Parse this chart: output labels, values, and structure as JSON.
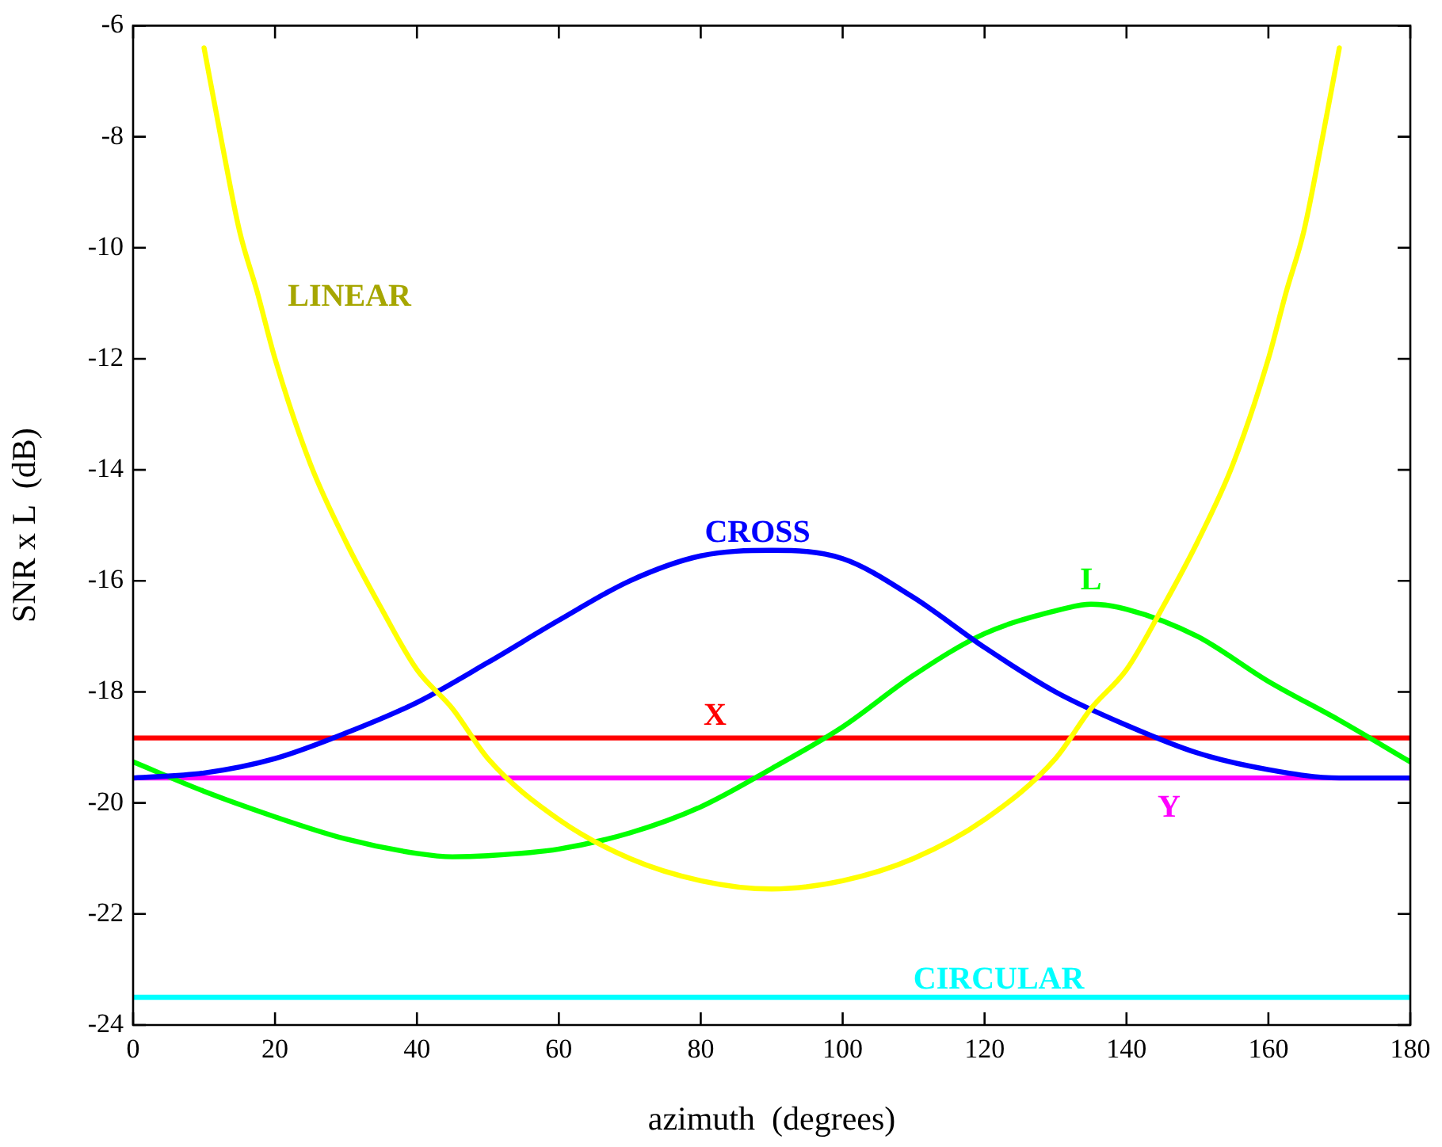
{
  "chart_data": {
    "type": "line",
    "xlabel": "azimuth  (degrees)",
    "ylabel": "SNR x L  (dB)",
    "xlim": [
      0,
      180
    ],
    "xticks": [
      0,
      20,
      40,
      60,
      80,
      100,
      120,
      140,
      160,
      180
    ],
    "ylim": [
      -24,
      -6
    ],
    "yticks": [
      -24,
      -22,
      -20,
      -18,
      -16,
      -14,
      -12,
      -10,
      -8,
      -6
    ],
    "grid": false,
    "legend": false,
    "marker": "none",
    "line_style": "solid",
    "series": [
      {
        "name": "LINEAR",
        "color": "#ffff00",
        "x": [
          10,
          12.5,
          15,
          17.5,
          20,
          25,
          30,
          35,
          40,
          45,
          50,
          60,
          70,
          80,
          90,
          100,
          110,
          120,
          130,
          135,
          140,
          145,
          150,
          155,
          160,
          162.5,
          165,
          167.5,
          170
        ],
        "values": [
          -6.4,
          -8.1,
          -9.7,
          -10.8,
          -12.0,
          -13.9,
          -15.3,
          -16.5,
          -17.6,
          -18.3,
          -19.2,
          -20.3,
          -21.0,
          -21.4,
          -21.55,
          -21.4,
          -21.0,
          -20.3,
          -19.2,
          -18.3,
          -17.6,
          -16.5,
          -15.3,
          -13.9,
          -12.0,
          -10.8,
          -9.7,
          -8.1,
          -6.4
        ]
      },
      {
        "name": "CROSS",
        "color": "#0000ff",
        "x": [
          0,
          10,
          20,
          30,
          40,
          50,
          60,
          70,
          80,
          90,
          100,
          110,
          120,
          130,
          140,
          150,
          160,
          170,
          180
        ],
        "values": [
          -19.55,
          -19.46,
          -19.2,
          -18.74,
          -18.19,
          -17.47,
          -16.71,
          -16.0,
          -15.55,
          -15.45,
          -15.6,
          -16.3,
          -17.2,
          -18.0,
          -18.6,
          -19.1,
          -19.4,
          -19.55,
          -19.55
        ]
      },
      {
        "name": "L",
        "color": "#00ff00",
        "x": [
          0,
          10,
          20,
          30,
          40,
          45,
          50,
          60,
          70,
          80,
          90,
          100,
          110,
          120,
          130,
          135,
          140,
          150,
          160,
          170,
          180
        ],
        "values": [
          -19.26,
          -19.79,
          -20.25,
          -20.65,
          -20.91,
          -20.97,
          -20.95,
          -20.83,
          -20.54,
          -20.07,
          -19.38,
          -18.63,
          -17.7,
          -16.95,
          -16.54,
          -16.42,
          -16.51,
          -17.0,
          -17.81,
          -18.51,
          -19.26
        ]
      },
      {
        "name": "X",
        "color": "#ff0000",
        "x": [
          0,
          180
        ],
        "values": [
          -18.83,
          -18.83
        ]
      },
      {
        "name": "Y",
        "color": "#ff00ff",
        "x": [
          0,
          180
        ],
        "values": [
          -19.55,
          -19.55
        ]
      },
      {
        "name": "CIRCULAR",
        "color": "#00ffff",
        "x": [
          0,
          180
        ],
        "values": [
          -23.5,
          -23.5
        ]
      }
    ]
  }
}
